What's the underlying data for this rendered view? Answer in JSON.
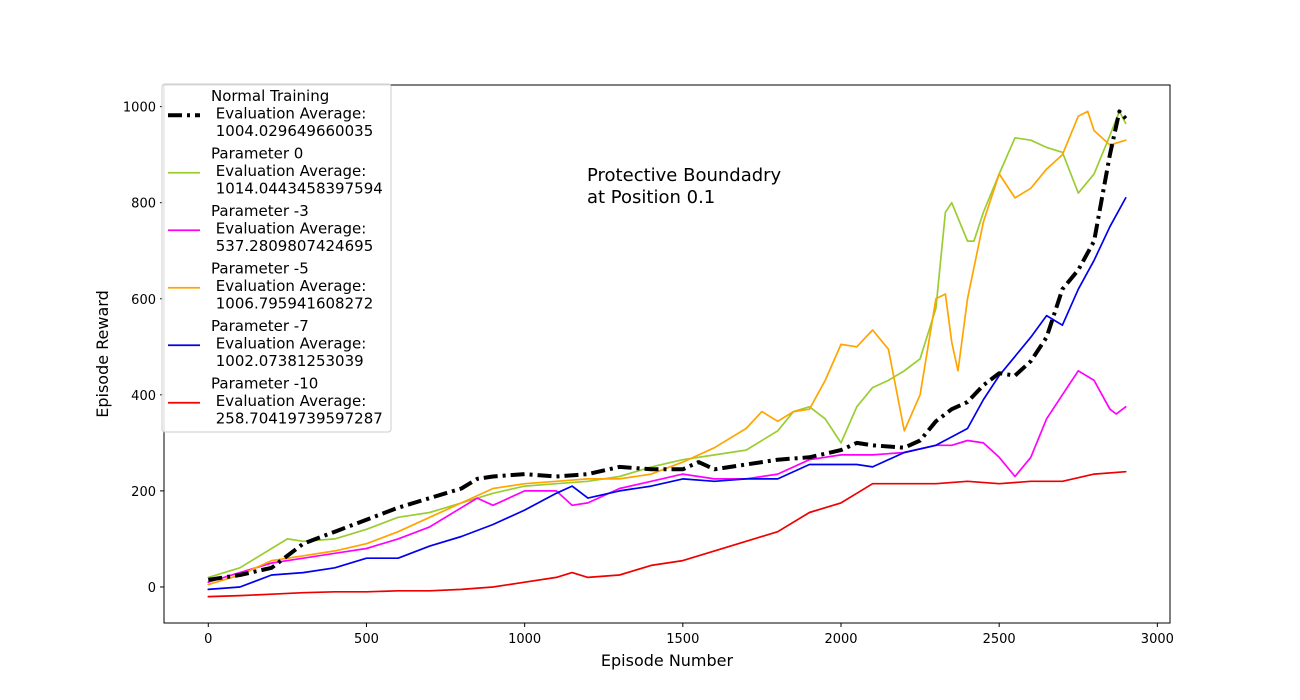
{
  "chart_data": {
    "type": "line",
    "xlabel": "Episode Number",
    "ylabel": "Episode Reward",
    "xlim": [
      -140,
      3040
    ],
    "ylim": [
      -75,
      1045
    ],
    "xticks": [
      0,
      500,
      1000,
      1500,
      2000,
      2500,
      3000
    ],
    "yticks": [
      0,
      200,
      400,
      600,
      800,
      1000
    ],
    "annotation": [
      "Protective Boundadry",
      " at Position 0.1"
    ],
    "grid": false,
    "legend_position": "upper-left",
    "series": [
      {
        "name": "Normal Training\n Evaluation Average:\n 1004.029649660035",
        "color": "#000000",
        "style": "dashdot",
        "x": [
          0,
          100,
          200,
          300,
          400,
          500,
          600,
          700,
          800,
          850,
          900,
          1000,
          1100,
          1200,
          1300,
          1400,
          1500,
          1550,
          1600,
          1700,
          1800,
          1900,
          2000,
          2050,
          2100,
          2200,
          2250,
          2300,
          2350,
          2400,
          2450,
          2500,
          2550,
          2600,
          2650,
          2700,
          2750,
          2800,
          2850,
          2880,
          2900
        ],
        "y": [
          15,
          25,
          40,
          90,
          115,
          140,
          165,
          185,
          205,
          225,
          230,
          235,
          230,
          235,
          250,
          245,
          245,
          260,
          245,
          255,
          265,
          270,
          285,
          300,
          295,
          290,
          305,
          345,
          370,
          385,
          420,
          445,
          440,
          470,
          520,
          620,
          660,
          720,
          900,
          990,
          975
        ]
      },
      {
        "name": "Parameter 0\n Evaluation Average:\n 1014.0443458397594",
        "color": "#9ACD32",
        "style": "solid",
        "x": [
          0,
          100,
          200,
          250,
          300,
          400,
          500,
          600,
          700,
          800,
          900,
          1000,
          1100,
          1200,
          1300,
          1400,
          1500,
          1600,
          1700,
          1800,
          1850,
          1900,
          1950,
          2000,
          2050,
          2100,
          2150,
          2200,
          2250,
          2300,
          2330,
          2350,
          2400,
          2420,
          2450,
          2500,
          2550,
          2600,
          2650,
          2700,
          2750,
          2800,
          2850,
          2880,
          2900
        ],
        "y": [
          20,
          40,
          80,
          100,
          95,
          100,
          120,
          145,
          155,
          175,
          195,
          210,
          215,
          220,
          230,
          250,
          265,
          275,
          285,
          325,
          365,
          375,
          350,
          300,
          375,
          415,
          430,
          450,
          475,
          580,
          780,
          800,
          720,
          720,
          780,
          860,
          935,
          930,
          915,
          905,
          820,
          860,
          940,
          990,
          965
        ]
      },
      {
        "name": "Parameter -3\n Evaluation Average:\n 537.2809807424695",
        "color": "#FF00FF",
        "style": "solid",
        "x": [
          0,
          100,
          200,
          300,
          400,
          500,
          600,
          700,
          800,
          850,
          900,
          1000,
          1100,
          1150,
          1200,
          1300,
          1400,
          1500,
          1600,
          1700,
          1800,
          1900,
          2000,
          2100,
          2200,
          2300,
          2350,
          2400,
          2450,
          2500,
          2550,
          2600,
          2650,
          2700,
          2750,
          2800,
          2850,
          2870,
          2900
        ],
        "y": [
          10,
          30,
          50,
          60,
          70,
          80,
          100,
          125,
          165,
          185,
          170,
          200,
          200,
          170,
          175,
          205,
          220,
          235,
          225,
          225,
          235,
          265,
          275,
          275,
          280,
          295,
          295,
          305,
          300,
          270,
          230,
          270,
          350,
          400,
          450,
          430,
          370,
          360,
          375
        ]
      },
      {
        "name": "Parameter -5\n Evaluation Average:\n 1006.795941608272",
        "color": "#FFA500",
        "style": "solid",
        "x": [
          0,
          100,
          200,
          300,
          400,
          500,
          600,
          700,
          800,
          900,
          1000,
          1100,
          1200,
          1300,
          1400,
          1500,
          1600,
          1700,
          1750,
          1800,
          1850,
          1900,
          1950,
          2000,
          2050,
          2100,
          2150,
          2200,
          2250,
          2300,
          2330,
          2350,
          2370,
          2400,
          2450,
          2500,
          2550,
          2600,
          2650,
          2700,
          2750,
          2780,
          2800,
          2850,
          2900
        ],
        "y": [
          5,
          25,
          55,
          65,
          75,
          90,
          115,
          145,
          175,
          205,
          215,
          220,
          225,
          225,
          235,
          260,
          290,
          330,
          365,
          345,
          365,
          370,
          430,
          505,
          500,
          535,
          495,
          325,
          400,
          600,
          610,
          510,
          450,
          600,
          760,
          860,
          810,
          830,
          870,
          900,
          980,
          990,
          950,
          920,
          930
        ]
      },
      {
        "name": "Parameter -7\n Evaluation Average:\n 1002.07381253039",
        "color": "#0000EE",
        "style": "solid",
        "x": [
          0,
          100,
          200,
          300,
          400,
          500,
          600,
          700,
          800,
          900,
          1000,
          1100,
          1150,
          1200,
          1300,
          1400,
          1500,
          1600,
          1700,
          1800,
          1900,
          2000,
          2050,
          2100,
          2200,
          2300,
          2400,
          2450,
          2500,
          2550,
          2600,
          2650,
          2700,
          2750,
          2800,
          2850,
          2900
        ],
        "y": [
          -5,
          0,
          25,
          30,
          40,
          60,
          60,
          85,
          105,
          130,
          160,
          195,
          210,
          185,
          200,
          210,
          225,
          220,
          225,
          225,
          255,
          255,
          255,
          250,
          280,
          295,
          330,
          390,
          440,
          480,
          520,
          565,
          545,
          620,
          680,
          750,
          810
        ]
      },
      {
        "name": "Parameter -10\n Evaluation Average:\n 258.70419739597287",
        "color": "#EE0000",
        "style": "solid",
        "x": [
          0,
          100,
          200,
          300,
          400,
          500,
          600,
          700,
          800,
          900,
          1000,
          1100,
          1150,
          1200,
          1300,
          1400,
          1500,
          1600,
          1700,
          1800,
          1900,
          2000,
          2050,
          2100,
          2200,
          2300,
          2400,
          2500,
          2600,
          2700,
          2800,
          2900
        ],
        "y": [
          -20,
          -18,
          -15,
          -12,
          -10,
          -10,
          -8,
          -8,
          -5,
          0,
          10,
          20,
          30,
          20,
          25,
          45,
          55,
          75,
          95,
          115,
          155,
          175,
          195,
          215,
          215,
          215,
          220,
          215,
          220,
          220,
          235,
          240
        ]
      }
    ]
  }
}
